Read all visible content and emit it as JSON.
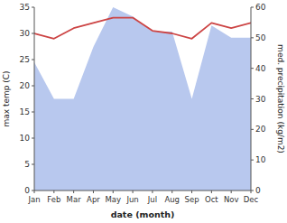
{
  "chart_data": {
    "type": "line",
    "x_label": "date (month)",
    "y_label": "max temp (C)",
    "y2_label": "med. precipitation (kg/m2)",
    "categories": [
      "Jan",
      "Feb",
      "Mar",
      "Apr",
      "May",
      "Jun",
      "Jul",
      "Aug",
      "Sep",
      "Oct",
      "Nov",
      "Dec"
    ],
    "series": [
      {
        "type": "area",
        "axis": "y2",
        "color": "#b8c8ee",
        "values": [
          42.0,
          30.0,
          30.0,
          47.0,
          60.0,
          57.0,
          52.0,
          52.0,
          30.0,
          54.0,
          50.0,
          50.0
        ]
      },
      {
        "type": "line",
        "color": "#cc4444",
        "values": [
          30.0,
          29.0,
          31.0,
          32.0,
          33.0,
          33.0,
          30.5,
          30.0,
          29.0,
          32.0,
          31.0,
          32.0
        ]
      }
    ],
    "ylim": [
      0,
      35
    ],
    "yticks": [
      0,
      5,
      10,
      15,
      20,
      25,
      30,
      35
    ],
    "y2lim": [
      0,
      60
    ],
    "y2ticks": [
      0,
      10,
      20,
      30,
      40,
      50,
      60
    ],
    "grid": false
  }
}
